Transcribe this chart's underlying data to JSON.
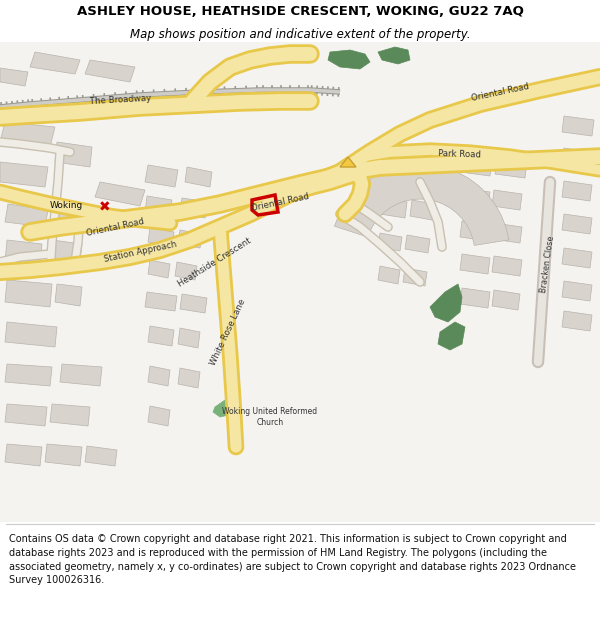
{
  "title_line1": "ASHLEY HOUSE, HEATHSIDE CRESCENT, WOKING, GU22 7AQ",
  "title_line2": "Map shows position and indicative extent of the property.",
  "footer_text": "Contains OS data © Crown copyright and database right 2021. This information is subject to Crown copyright and database rights 2023 and is reproduced with the permission of HM Land Registry. The polygons (including the associated geometry, namely x, y co-ordinates) are subject to Crown copyright and database rights 2023 Ordnance Survey 100026316.",
  "title_fontsize": 9.5,
  "subtitle_fontsize": 8.5,
  "footer_fontsize": 7.0,
  "map_bg": "#f5f3f0",
  "road_yellow_fill": "#f5e6a3",
  "road_yellow_edge": "#e8c84a",
  "road_white_fill": "#ffffff",
  "road_gray_edge": "#c8c0b8",
  "building_fill": "#d8d3cc",
  "building_edge": "#b8b3ac",
  "green_dark": "#5a8a5a",
  "green_light": "#7ab87a",
  "rail_color": "#888880",
  "highlight_red": "#cc0000",
  "header_bg": "#ffffff",
  "footer_bg": "#ffffff",
  "title_color": "#000000"
}
